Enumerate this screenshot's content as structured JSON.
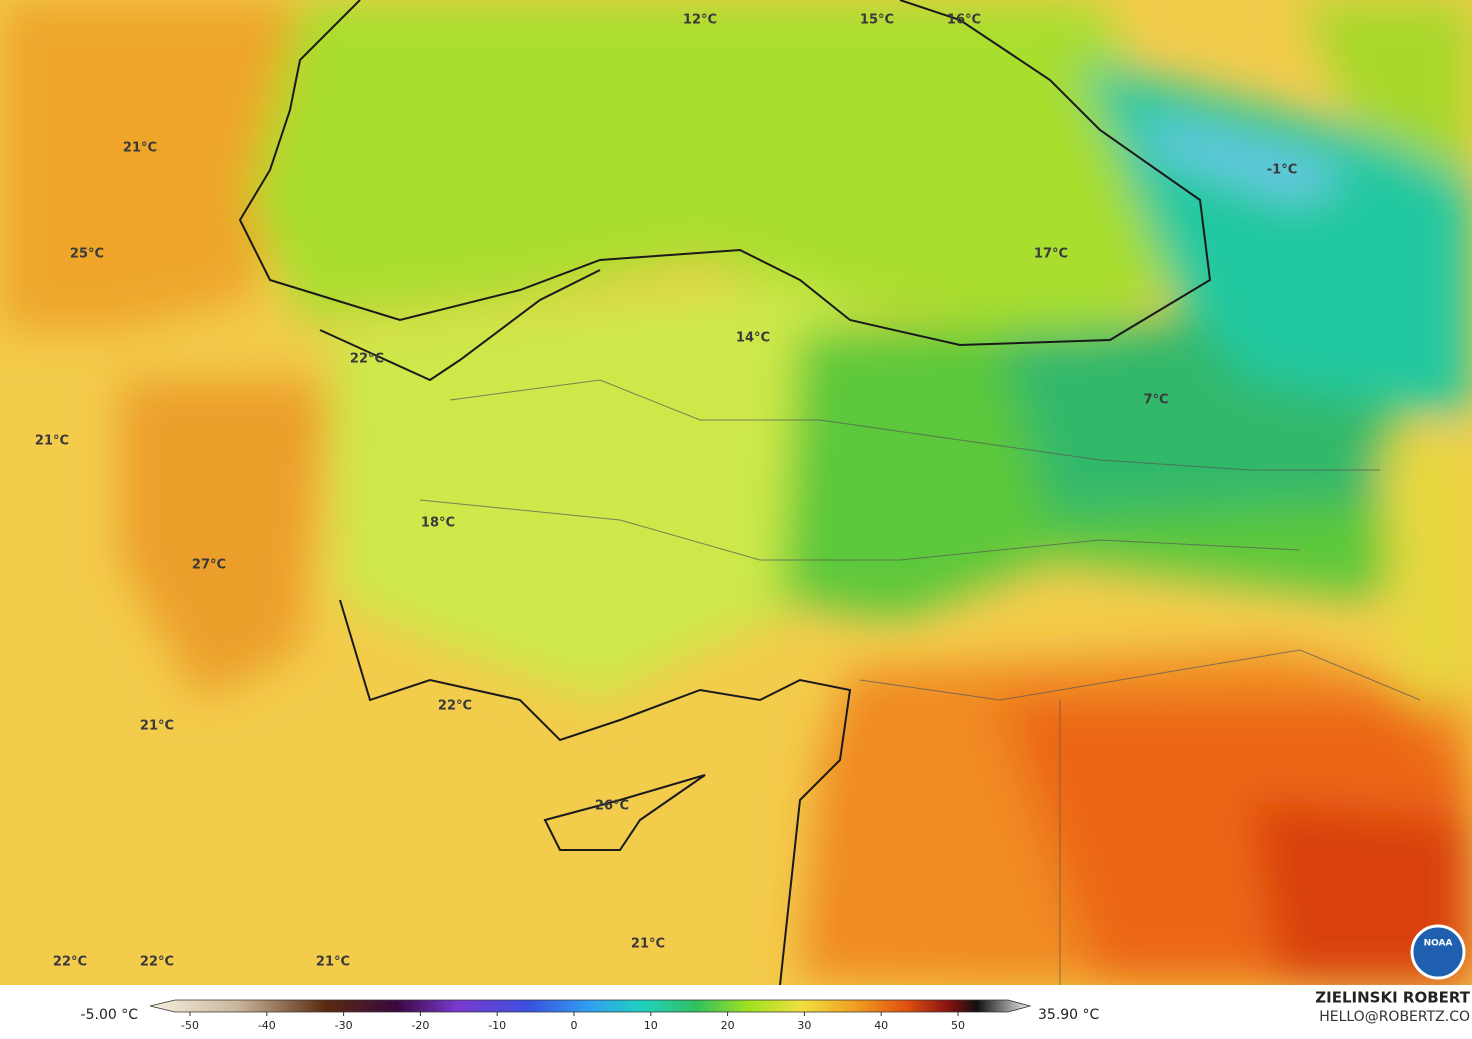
{
  "map": {
    "labels": [
      "12°C",
      "15°C",
      "16°C",
      "-1°C",
      "21°C",
      "25°C",
      "17°C",
      "14°C",
      "22°C",
      "7°C",
      "21°C",
      "18°C",
      "27°C",
      "22°C",
      "21°C",
      "26°C",
      "21°C",
      "22°C",
      "22°C",
      "21°C"
    ]
  },
  "legend": {
    "min_label": "-5.00 °C",
    "max_label": "35.90 °C",
    "ticks": [
      -50,
      -40,
      -30,
      -20,
      -10,
      0,
      10,
      20,
      30,
      40,
      50
    ]
  },
  "credit": {
    "name": "ZIELINSKI ROBERT",
    "email": "HELLO@ROBERTZ.CO"
  },
  "logo": "NOAA"
}
